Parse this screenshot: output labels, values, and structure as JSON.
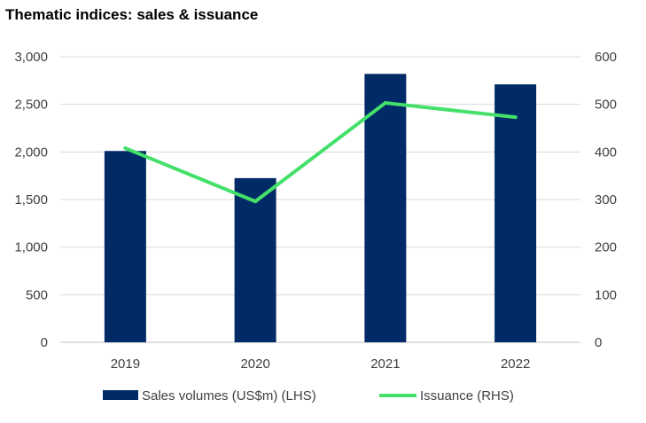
{
  "chart_data": {
    "type": "bar+line",
    "title": "Thematic indices: sales & issuance",
    "categories": [
      "2019",
      "2020",
      "2021",
      "2022"
    ],
    "series": [
      {
        "name": "Sales volumes (US$m) (LHS)",
        "type": "bar",
        "axis": "left",
        "color": "#002b66",
        "values": [
          2010,
          1725,
          2820,
          2710
        ]
      },
      {
        "name": "Issuance (RHS)",
        "type": "line",
        "axis": "right",
        "color": "#44e06a",
        "values": [
          408,
          296,
          503,
          473
        ]
      }
    ],
    "y_left": {
      "min": 0,
      "max": 3000,
      "ticks": [
        "0",
        "500",
        "1,000",
        "1,500",
        "2,000",
        "2,500",
        "3,000"
      ]
    },
    "y_right": {
      "min": 0,
      "max": 600,
      "ticks": [
        "0",
        "100",
        "200",
        "300",
        "400",
        "500",
        "600"
      ]
    },
    "grid": true,
    "legend": "bottom"
  }
}
